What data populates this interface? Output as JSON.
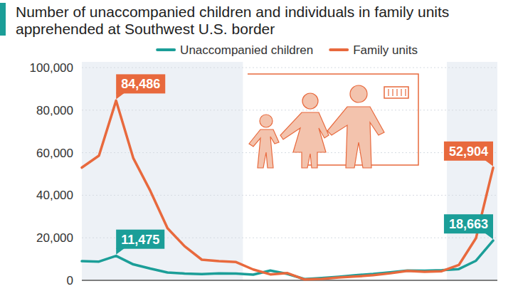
{
  "chart_data": {
    "type": "line",
    "title": "Number of unaccompanied children and individuals in family units apprehended at Southwest U.S. border",
    "categories": [
      null,
      null,
      null,
      null,
      null,
      null,
      null,
      null,
      null,
      null,
      null,
      null,
      null,
      null,
      null,
      null,
      null,
      null,
      null,
      null,
      null,
      null,
      null,
      null,
      null
    ],
    "series": [
      {
        "name": "Unaccompanied children",
        "color": "#1b9e98",
        "values": [
          9000,
          8800,
          11475,
          7500,
          5500,
          3700,
          3200,
          2900,
          3300,
          3200,
          2700,
          4600,
          3000,
          600,
          1100,
          1700,
          2400,
          3000,
          3800,
          4600,
          4500,
          4800,
          5300,
          9200,
          18663
        ],
        "value_labels": [
          null,
          null,
          "11,475",
          null,
          null,
          null,
          null,
          null,
          null,
          null,
          null,
          null,
          null,
          null,
          null,
          null,
          null,
          null,
          null,
          null,
          null,
          null,
          null,
          null,
          "18,663"
        ]
      },
      {
        "name": "Family units",
        "color": "#e8693d",
        "values": [
          53000,
          58600,
          84486,
          57500,
          42000,
          24500,
          16000,
          9700,
          9000,
          8600,
          5100,
          2800,
          3400,
          400,
          700,
          1300,
          1800,
          2400,
          3300,
          4400,
          4000,
          4300,
          7200,
          19800,
          52904
        ],
        "value_labels": [
          null,
          null,
          "84,486",
          null,
          null,
          null,
          null,
          null,
          null,
          null,
          null,
          null,
          null,
          null,
          null,
          null,
          null,
          null,
          null,
          null,
          null,
          null,
          null,
          null,
          "52,904"
        ]
      }
    ],
    "ylim": [
      0,
      100000
    ],
    "yticks": [
      0,
      {
        "value": 20000,
        "label": "20,000"
      },
      {
        "value": 40000,
        "label": "40,000"
      },
      {
        "value": 60000,
        "label": "60,000"
      },
      {
        "value": 80000,
        "label": "80,000"
      },
      {
        "value": 100000,
        "label": "100,000"
      }
    ],
    "grid": true,
    "legend": "top",
    "data_labels": true,
    "tick_labels": "y",
    "line_style": "solid"
  }
}
